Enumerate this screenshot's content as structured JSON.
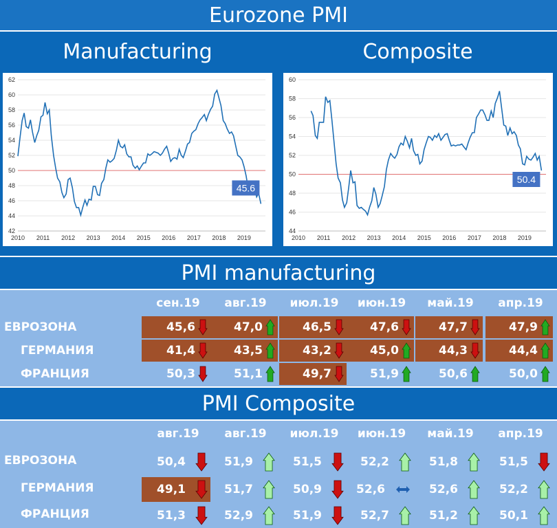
{
  "header": {
    "title": "Eurozone PMI"
  },
  "subtitles": {
    "left": "Manufacturing",
    "right": "Composite"
  },
  "colors": {
    "line": "#1f6fb5",
    "threshold": "#e07070",
    "up": "#22aa22",
    "down": "#cc1111",
    "flat": "#1e5fb0",
    "highlight": "#a0502a",
    "badge": "#4472c4"
  },
  "chart_data": [
    {
      "type": "line",
      "name": "manufacturing",
      "title": "",
      "xlabel": "",
      "ylabel": "",
      "xlim": [
        2010,
        2019.85
      ],
      "ylim": [
        42,
        62
      ],
      "xticks": [
        "2010",
        "2011",
        "2012",
        "2013",
        "2014",
        "2015",
        "2016",
        "2017",
        "2018",
        "2019"
      ],
      "yticks": [
        "42",
        "44",
        "46",
        "48",
        "50",
        "52",
        "54",
        "56",
        "58",
        "60",
        "62"
      ],
      "threshold": 50,
      "grid": "horizontal",
      "last_label": "45.6",
      "x": [
        2010.0,
        2010.08,
        2010.17,
        2010.25,
        2010.33,
        2010.42,
        2010.5,
        2010.58,
        2010.67,
        2010.75,
        2010.83,
        2010.92,
        2011.0,
        2011.08,
        2011.17,
        2011.25,
        2011.33,
        2011.42,
        2011.5,
        2011.58,
        2011.67,
        2011.75,
        2011.83,
        2011.92,
        2012.0,
        2012.08,
        2012.17,
        2012.25,
        2012.33,
        2012.42,
        2012.5,
        2012.58,
        2012.67,
        2012.75,
        2012.83,
        2012.92,
        2013.0,
        2013.08,
        2013.17,
        2013.25,
        2013.33,
        2013.42,
        2013.5,
        2013.58,
        2013.67,
        2013.75,
        2013.83,
        2013.92,
        2014.0,
        2014.08,
        2014.17,
        2014.25,
        2014.33,
        2014.42,
        2014.5,
        2014.58,
        2014.67,
        2014.75,
        2014.83,
        2014.92,
        2015.0,
        2015.08,
        2015.17,
        2015.25,
        2015.33,
        2015.42,
        2015.5,
        2015.58,
        2015.67,
        2015.75,
        2015.83,
        2015.92,
        2016.0,
        2016.08,
        2016.17,
        2016.25,
        2016.33,
        2016.42,
        2016.5,
        2016.58,
        2016.67,
        2016.75,
        2016.83,
        2016.92,
        2017.0,
        2017.08,
        2017.17,
        2017.25,
        2017.33,
        2017.42,
        2017.5,
        2017.58,
        2017.67,
        2017.75,
        2017.83,
        2017.92,
        2018.0,
        2018.08,
        2018.17,
        2018.25,
        2018.33,
        2018.42,
        2018.5,
        2018.58,
        2018.67,
        2018.75,
        2018.83,
        2018.92,
        2019.0,
        2019.08,
        2019.17,
        2019.25,
        2019.33,
        2019.42,
        2019.5,
        2019.58,
        2019.67
      ],
      "values": [
        51.9,
        54.2,
        56.6,
        57.6,
        55.8,
        55.6,
        56.7,
        55.1,
        53.7,
        54.6,
        55.3,
        57.1,
        57.3,
        59.0,
        57.5,
        58.0,
        54.6,
        52.0,
        50.4,
        49.0,
        48.5,
        47.1,
        46.4,
        46.9,
        48.8,
        49.0,
        47.7,
        45.9,
        45.1,
        45.1,
        44.1,
        45.1,
        46.1,
        45.4,
        46.2,
        46.1,
        47.9,
        47.9,
        46.8,
        46.7,
        48.3,
        48.8,
        50.3,
        51.4,
        51.1,
        51.3,
        51.6,
        52.7,
        54.0,
        53.2,
        53.0,
        53.4,
        52.2,
        51.8,
        51.8,
        50.7,
        50.3,
        50.6,
        50.1,
        50.6,
        51.0,
        51.0,
        52.2,
        52.0,
        52.2,
        52.5,
        52.4,
        52.3,
        52.0,
        52.3,
        52.8,
        53.2,
        52.3,
        51.2,
        51.6,
        51.7,
        51.5,
        52.8,
        52.0,
        51.7,
        52.6,
        53.5,
        53.7,
        54.9,
        55.2,
        55.4,
        56.2,
        56.7,
        57.0,
        57.4,
        56.6,
        57.4,
        58.1,
        58.5,
        60.1,
        60.6,
        59.6,
        58.6,
        56.6,
        56.2,
        55.5,
        54.9,
        55.1,
        54.6,
        53.2,
        52.0,
        51.8,
        51.4,
        50.5,
        49.3,
        47.5,
        47.9,
        47.7,
        47.6,
        46.5,
        47.0,
        45.6
      ]
    },
    {
      "type": "line",
      "name": "composite",
      "title": "",
      "xlabel": "",
      "ylabel": "",
      "xlim": [
        2010,
        2019.85
      ],
      "ylim": [
        44,
        60
      ],
      "xticks": [
        "2010",
        "2011",
        "2012",
        "2013",
        "2014",
        "2015",
        "2016",
        "2017",
        "2018",
        "2019"
      ],
      "yticks": [
        "44",
        "46",
        "48",
        "50",
        "52",
        "54",
        "56",
        "58",
        "60"
      ],
      "threshold": 50,
      "grid": "horizontal",
      "last_label": "50.4",
      "x": [
        2010.5,
        2010.58,
        2010.67,
        2010.75,
        2010.83,
        2010.92,
        2011.0,
        2011.08,
        2011.17,
        2011.25,
        2011.33,
        2011.42,
        2011.5,
        2011.58,
        2011.67,
        2011.75,
        2011.83,
        2011.92,
        2012.0,
        2012.08,
        2012.17,
        2012.25,
        2012.33,
        2012.42,
        2012.5,
        2012.58,
        2012.67,
        2012.75,
        2012.83,
        2012.92,
        2013.0,
        2013.08,
        2013.17,
        2013.25,
        2013.33,
        2013.42,
        2013.5,
        2013.58,
        2013.67,
        2013.75,
        2013.83,
        2013.92,
        2014.0,
        2014.08,
        2014.17,
        2014.25,
        2014.33,
        2014.42,
        2014.5,
        2014.58,
        2014.67,
        2014.75,
        2014.83,
        2014.92,
        2015.0,
        2015.08,
        2015.17,
        2015.25,
        2015.33,
        2015.42,
        2015.5,
        2015.58,
        2015.67,
        2015.75,
        2015.83,
        2015.92,
        2016.0,
        2016.08,
        2016.17,
        2016.25,
        2016.33,
        2016.42,
        2016.5,
        2016.58,
        2016.67,
        2016.75,
        2016.83,
        2016.92,
        2017.0,
        2017.08,
        2017.17,
        2017.25,
        2017.33,
        2017.42,
        2017.5,
        2017.58,
        2017.67,
        2017.75,
        2017.83,
        2017.92,
        2018.0,
        2018.08,
        2018.17,
        2018.25,
        2018.33,
        2018.42,
        2018.5,
        2018.58,
        2018.67,
        2018.75,
        2018.83,
        2018.92,
        2019.0,
        2019.08,
        2019.17,
        2019.25,
        2019.33,
        2019.42,
        2019.5,
        2019.58,
        2019.67
      ],
      "values": [
        56.7,
        56.2,
        54.1,
        53.8,
        55.5,
        55.5,
        55.5,
        58.2,
        57.6,
        57.8,
        55.8,
        53.3,
        51.1,
        49.6,
        49.1,
        47.3,
        46.5,
        47.0,
        48.6,
        50.4,
        49.1,
        49.2,
        46.7,
        46.4,
        46.5,
        46.3,
        46.1,
        45.7,
        46.5,
        47.2,
        48.6,
        47.9,
        46.5,
        46.9,
        47.7,
        48.7,
        50.5,
        51.5,
        52.2,
        51.9,
        51.7,
        52.1,
        52.9,
        53.3,
        53.1,
        54.0,
        53.5,
        52.8,
        53.8,
        52.5,
        52.0,
        52.1,
        51.1,
        51.4,
        52.6,
        53.3,
        54.0,
        53.9,
        53.6,
        54.1,
        53.9,
        54.3,
        53.6,
        53.9,
        54.2,
        54.3,
        53.6,
        53.0,
        53.1,
        53.0,
        53.1,
        53.1,
        53.2,
        52.9,
        52.6,
        53.3,
        53.9,
        54.4,
        54.4,
        56.0,
        56.4,
        56.8,
        56.8,
        56.3,
        55.7,
        55.7,
        56.7,
        56.0,
        57.5,
        58.1,
        58.8,
        57.1,
        55.2,
        55.1,
        54.1,
        54.9,
        54.3,
        54.5,
        54.1,
        53.1,
        52.7,
        51.1,
        51.0,
        51.9,
        51.6,
        51.5,
        51.8,
        52.2,
        51.5,
        51.9,
        50.4
      ]
    }
  ],
  "tables": [
    {
      "title": "PMI manufacturing",
      "columns": [
        "сен.19",
        "авг.19",
        "июл.19",
        "июн.19",
        "май.19",
        "апр.19"
      ],
      "rows": [
        {
          "label": "ЕВРОЗОНА",
          "cells": [
            {
              "value": "45,6",
              "arrow": "down",
              "hl": true
            },
            {
              "value": "47,0",
              "arrow": "up",
              "hl": true
            },
            {
              "value": "46,5",
              "arrow": "down",
              "hl": true
            },
            {
              "value": "47,6",
              "arrow": "down",
              "hl": true
            },
            {
              "value": "47,7",
              "arrow": "down",
              "hl": true
            },
            {
              "value": "47,9",
              "arrow": "up",
              "hl": true
            }
          ]
        },
        {
          "label": "ГЕРМАНИЯ",
          "cells": [
            {
              "value": "41,4",
              "arrow": "down",
              "hl": true
            },
            {
              "value": "43,5",
              "arrow": "up",
              "hl": true
            },
            {
              "value": "43,2",
              "arrow": "down",
              "hl": true
            },
            {
              "value": "45,0",
              "arrow": "up",
              "hl": true
            },
            {
              "value": "44,3",
              "arrow": "down",
              "hl": true
            },
            {
              "value": "44,4",
              "arrow": "up",
              "hl": true
            }
          ]
        },
        {
          "label": "ФРАНЦИЯ",
          "cells": [
            {
              "value": "50,3",
              "arrow": "down",
              "hl": false
            },
            {
              "value": "51,1",
              "arrow": "up",
              "hl": false
            },
            {
              "value": "49,7",
              "arrow": "down",
              "hl": true
            },
            {
              "value": "51,9",
              "arrow": "up",
              "hl": false
            },
            {
              "value": "50,6",
              "arrow": "up",
              "hl": false
            },
            {
              "value": "50,0",
              "arrow": "up",
              "hl": false
            }
          ]
        }
      ]
    },
    {
      "title": "PMI Composite",
      "columns": [
        "авг.19",
        "авг.19",
        "июл.19",
        "июн.19",
        "май.19",
        "апр.19"
      ],
      "rows": [
        {
          "label": "ЕВРОЗОНА",
          "cells": [
            {
              "value": "50,4",
              "arrow": "down",
              "hl": false
            },
            {
              "value": "51,9",
              "arrow": "up",
              "hl": false
            },
            {
              "value": "51,5",
              "arrow": "down",
              "hl": false
            },
            {
              "value": "52,2",
              "arrow": "up",
              "hl": false
            },
            {
              "value": "51,8",
              "arrow": "up",
              "hl": false
            },
            {
              "value": "51,5",
              "arrow": "down",
              "hl": false
            }
          ]
        },
        {
          "label": "ГЕРМАНИЯ",
          "cells": [
            {
              "value": "49,1",
              "arrow": "down",
              "hl": true
            },
            {
              "value": "51,7",
              "arrow": "up",
              "hl": false
            },
            {
              "value": "50,9",
              "arrow": "down",
              "hl": false
            },
            {
              "value": "52,6",
              "arrow": "flat",
              "hl": false
            },
            {
              "value": "52,6",
              "arrow": "up",
              "hl": false
            },
            {
              "value": "52,2",
              "arrow": "up",
              "hl": false
            }
          ]
        },
        {
          "label": "ФРАНЦИЯ",
          "cells": [
            {
              "value": "51,3",
              "arrow": "down",
              "hl": false
            },
            {
              "value": "52,9",
              "arrow": "up",
              "hl": false
            },
            {
              "value": "51,9",
              "arrow": "down",
              "hl": false
            },
            {
              "value": "52,7",
              "arrow": "up",
              "hl": false
            },
            {
              "value": "51,2",
              "arrow": "up",
              "hl": false
            },
            {
              "value": "50,1",
              "arrow": "up",
              "hl": false
            }
          ]
        }
      ]
    }
  ]
}
